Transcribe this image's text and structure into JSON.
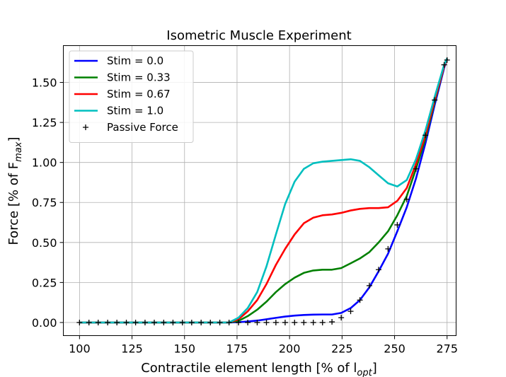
{
  "chart_data": {
    "type": "line",
    "title": "Isometric Muscle Experiment",
    "xlabel": "Contractile element length [% of l",
    "xlabel_sub": "opt",
    "xlabel_end": "]",
    "ylabel": "Force [% of F",
    "ylabel_sub": "max",
    "ylabel_end": "]",
    "xlim": [
      92.3,
      279.3
    ],
    "ylim": [
      -0.082,
      1.73
    ],
    "xticks": [
      100,
      125,
      150,
      175,
      200,
      225,
      250,
      275
    ],
    "yticks": [
      0.0,
      0.25,
      0.5,
      0.75,
      1.0,
      1.25,
      1.5
    ],
    "xtick_labels": [
      "100",
      "125",
      "150",
      "175",
      "200",
      "225",
      "250",
      "275"
    ],
    "ytick_labels": [
      "0.00",
      "0.25",
      "0.50",
      "0.75",
      "1.00",
      "1.25",
      "1.50"
    ],
    "grid": true,
    "legend_position": "top-left",
    "x": [
      100,
      104.5,
      108.9,
      113.4,
      117.8,
      122.3,
      126.7,
      131.2,
      135.6,
      140.1,
      144.5,
      149.0,
      153.4,
      157.9,
      162.3,
      166.8,
      171.2,
      175.7,
      180.1,
      184.6,
      189.0,
      193.5,
      197.9,
      202.4,
      206.8,
      211.3,
      215.7,
      220.2,
      224.6,
      229.1,
      233.5,
      238.0,
      242.4,
      246.9,
      251.3,
      255.8,
      260.2,
      264.7,
      269.1,
      273.6,
      275
    ],
    "series": [
      {
        "name": "Stim = 0.0",
        "color": "#0000ff",
        "style": "line",
        "values": [
          0,
          0,
          0,
          0,
          0,
          0,
          0,
          0,
          0,
          0,
          0,
          0,
          0,
          0,
          0,
          0,
          0,
          0.002,
          0.006,
          0.012,
          0.02,
          0.029,
          0.037,
          0.043,
          0.047,
          0.049,
          0.05,
          0.05,
          0.06,
          0.09,
          0.14,
          0.22,
          0.32,
          0.43,
          0.57,
          0.72,
          0.9,
          1.12,
          1.36,
          1.59,
          1.65
        ]
      },
      {
        "name": "Stim = 0.33",
        "color": "#008000",
        "style": "line",
        "values": [
          0,
          0,
          0,
          0,
          0,
          0,
          0,
          0,
          0,
          0,
          0,
          0,
          0,
          0,
          0,
          0,
          0,
          0.01,
          0.04,
          0.08,
          0.13,
          0.19,
          0.24,
          0.28,
          0.31,
          0.325,
          0.33,
          0.33,
          0.34,
          0.37,
          0.4,
          0.44,
          0.5,
          0.57,
          0.67,
          0.79,
          0.96,
          1.15,
          1.38,
          1.6,
          1.65
        ]
      },
      {
        "name": "Stim = 0.67",
        "color": "#ff0000",
        "style": "line",
        "values": [
          0,
          0,
          0,
          0,
          0,
          0,
          0,
          0,
          0,
          0,
          0,
          0,
          0,
          0,
          0,
          0,
          0,
          0.02,
          0.07,
          0.14,
          0.24,
          0.36,
          0.46,
          0.55,
          0.62,
          0.655,
          0.67,
          0.675,
          0.685,
          0.7,
          0.71,
          0.715,
          0.715,
          0.72,
          0.76,
          0.84,
          0.99,
          1.17,
          1.39,
          1.6,
          1.65
        ]
      },
      {
        "name": "Stim = 1.0",
        "color": "#00bfbf",
        "style": "line",
        "values": [
          0,
          0,
          0,
          0,
          0,
          0,
          0,
          0,
          0,
          0,
          0,
          0,
          0,
          0,
          0,
          0,
          0,
          0.03,
          0.09,
          0.19,
          0.35,
          0.55,
          0.74,
          0.88,
          0.96,
          0.995,
          1.005,
          1.01,
          1.015,
          1.02,
          1.01,
          0.97,
          0.92,
          0.87,
          0.85,
          0.89,
          1.02,
          1.2,
          1.41,
          1.61,
          1.65
        ]
      },
      {
        "name": "Passive Force",
        "color": "#000000",
        "style": "marker",
        "values": [
          0,
          0,
          0,
          0,
          0,
          0,
          0,
          0,
          0,
          0,
          0,
          0,
          0,
          0,
          0,
          0,
          0,
          0,
          0,
          0,
          0,
          0,
          0,
          0,
          0,
          0,
          0,
          0.004,
          0.03,
          0.07,
          0.14,
          0.23,
          0.33,
          0.46,
          0.61,
          0.77,
          0.96,
          1.17,
          1.39,
          1.61,
          1.64
        ]
      }
    ]
  }
}
